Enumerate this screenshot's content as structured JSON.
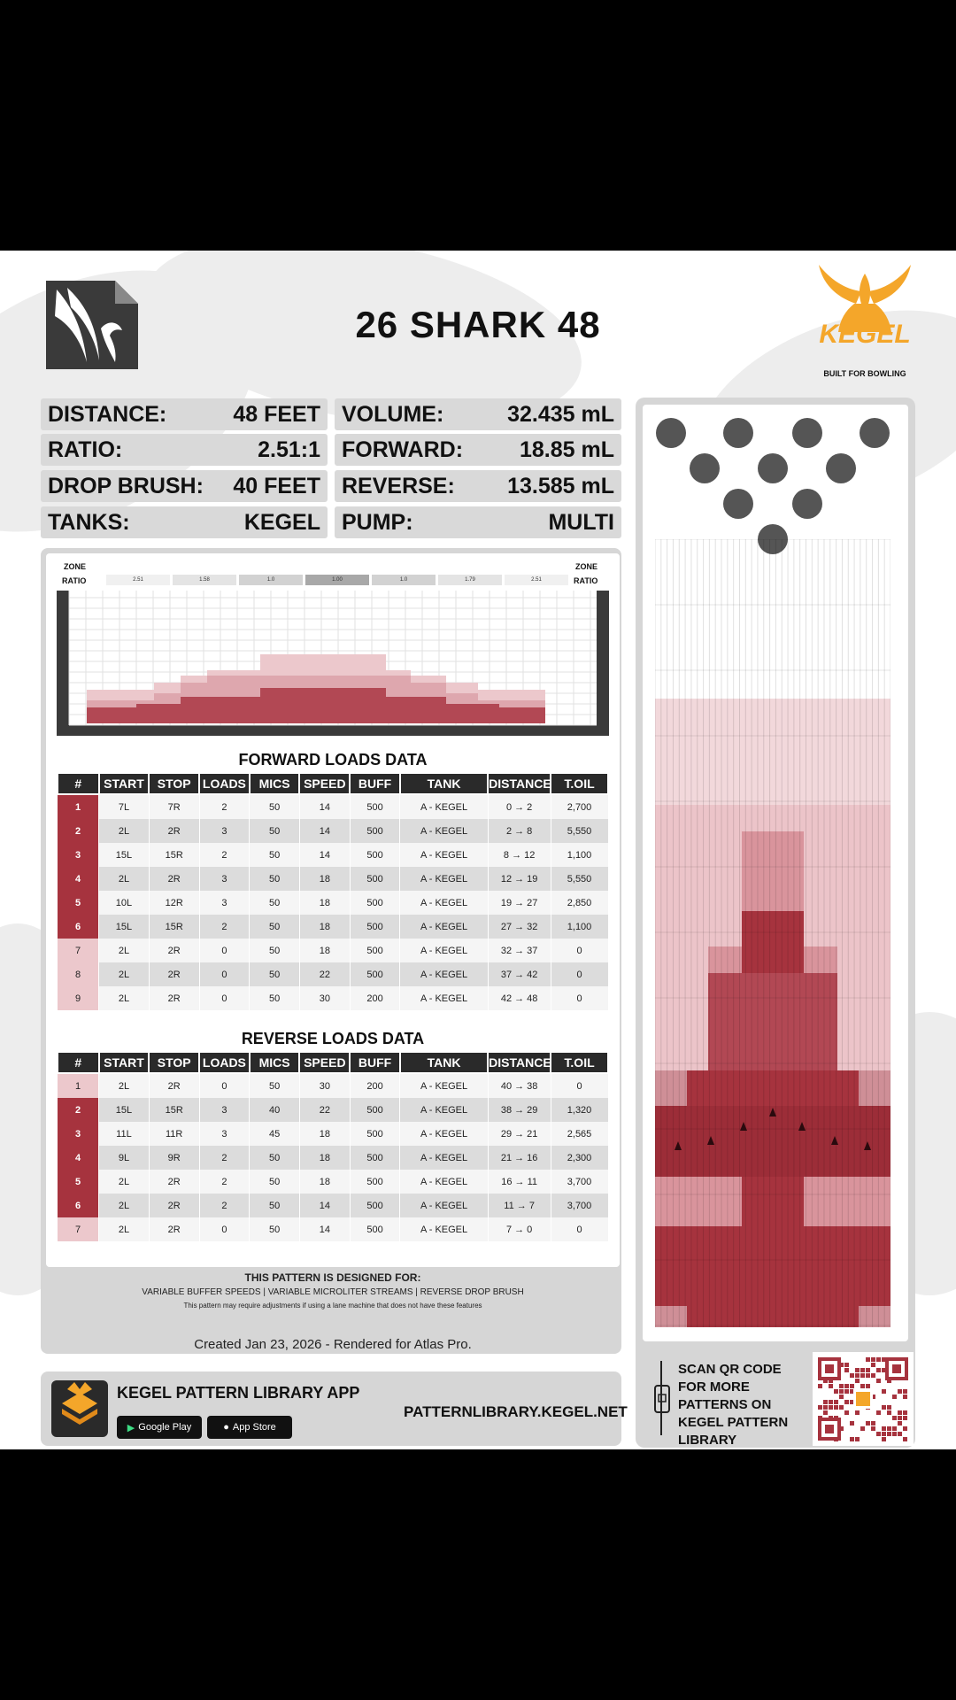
{
  "title": "26 SHARK 48",
  "brand": {
    "name": "KEGEL",
    "tagline": "BUILT FOR BOWLING"
  },
  "colors": {
    "dark_red": "#a6333e",
    "mid_red": "#cf8f97",
    "light_red": "#ecc8cc",
    "panel_gray": "#d6d6d6",
    "header_dark": "#2a2a2a"
  },
  "stats_left": [
    {
      "label": "DISTANCE:",
      "value": "48 FEET"
    },
    {
      "label": "RATIO:",
      "value": "2.51:1"
    },
    {
      "label": "DROP BRUSH:",
      "value": "40 FEET"
    },
    {
      "label": "TANKS:",
      "value": "KEGEL"
    }
  ],
  "stats_right": [
    {
      "label": "VOLUME:",
      "value": "32.435 mL"
    },
    {
      "label": "FORWARD:",
      "value": "18.85 mL"
    },
    {
      "label": "REVERSE:",
      "value": "13.585 mL"
    },
    {
      "label": "PUMP:",
      "value": "MULTI"
    }
  ],
  "zone_chart": {
    "zone_label": "ZONE",
    "ratio_label": "RATIO",
    "ratios": [
      "2.51",
      "1.58",
      "1.0",
      "1.00",
      "1.0",
      "1.79",
      "2.51"
    ]
  },
  "forward": {
    "title": "FORWARD LOADS DATA",
    "headers": [
      "#",
      "START",
      "STOP",
      "LOADS",
      "MICS",
      "SPEED",
      "BUFF",
      "TANK",
      "DISTANCE",
      "T.OIL"
    ],
    "rows": [
      [
        "1",
        "7L",
        "7R",
        "2",
        "50",
        "14",
        "500",
        "A - KEGEL",
        "0 → 2",
        "2,700"
      ],
      [
        "2",
        "2L",
        "2R",
        "3",
        "50",
        "14",
        "500",
        "A - KEGEL",
        "2 → 8",
        "5,550"
      ],
      [
        "3",
        "15L",
        "15R",
        "2",
        "50",
        "14",
        "500",
        "A - KEGEL",
        "8 → 12",
        "1,100"
      ],
      [
        "4",
        "2L",
        "2R",
        "3",
        "50",
        "18",
        "500",
        "A - KEGEL",
        "12 → 19",
        "5,550"
      ],
      [
        "5",
        "10L",
        "12R",
        "3",
        "50",
        "18",
        "500",
        "A - KEGEL",
        "19 → 27",
        "2,850"
      ],
      [
        "6",
        "15L",
        "15R",
        "2",
        "50",
        "18",
        "500",
        "A - KEGEL",
        "27 → 32",
        "1,100"
      ],
      [
        "7",
        "2L",
        "2R",
        "0",
        "50",
        "18",
        "500",
        "A - KEGEL",
        "32 → 37",
        "0"
      ],
      [
        "8",
        "2L",
        "2R",
        "0",
        "50",
        "22",
        "500",
        "A - KEGEL",
        "37 → 42",
        "0"
      ],
      [
        "9",
        "2L",
        "2R",
        "0",
        "50",
        "30",
        "200",
        "A - KEGEL",
        "42 → 48",
        "0"
      ]
    ]
  },
  "reverse": {
    "title": "REVERSE LOADS DATA",
    "headers": [
      "#",
      "START",
      "STOP",
      "LOADS",
      "MICS",
      "SPEED",
      "BUFF",
      "TANK",
      "DISTANCE",
      "T.OIL"
    ],
    "rows": [
      [
        "1",
        "2L",
        "2R",
        "0",
        "50",
        "30",
        "200",
        "A - KEGEL",
        "40 → 38",
        "0"
      ],
      [
        "2",
        "15L",
        "15R",
        "3",
        "40",
        "22",
        "500",
        "A - KEGEL",
        "38 → 29",
        "1,320"
      ],
      [
        "3",
        "11L",
        "11R",
        "3",
        "45",
        "18",
        "500",
        "A - KEGEL",
        "29 → 21",
        "2,565"
      ],
      [
        "4",
        "9L",
        "9R",
        "2",
        "50",
        "18",
        "500",
        "A - KEGEL",
        "21 → 16",
        "2,300"
      ],
      [
        "5",
        "2L",
        "2R",
        "2",
        "50",
        "18",
        "500",
        "A - KEGEL",
        "16 → 11",
        "3,700"
      ],
      [
        "6",
        "2L",
        "2R",
        "2",
        "50",
        "14",
        "500",
        "A - KEGEL",
        "11 → 7",
        "3,700"
      ],
      [
        "7",
        "2L",
        "2R",
        "0",
        "50",
        "14",
        "500",
        "A - KEGEL",
        "7 → 0",
        "0"
      ]
    ]
  },
  "designed": {
    "heading": "THIS PATTERN IS DESIGNED FOR:",
    "line": "VARIABLE BUFFER SPEEDS | VARIABLE MICROLITER STREAMS | REVERSE DROP BRUSH",
    "note": "This pattern may require adjustments if using a lane machine that does not have these features"
  },
  "created": "Created Jan 23, 2026 - Rendered for Atlas Pro.",
  "app": {
    "title": "KEGEL PATTERN LIBRARY APP",
    "google": "Google Play",
    "apple": "App Store",
    "url": "PATTERNLIBRARY.KEGEL.NET"
  },
  "qr": {
    "text": "SCAN QR CODE FOR MORE PATTERNS ON KEGEL PATTERN LIBRARY"
  }
}
